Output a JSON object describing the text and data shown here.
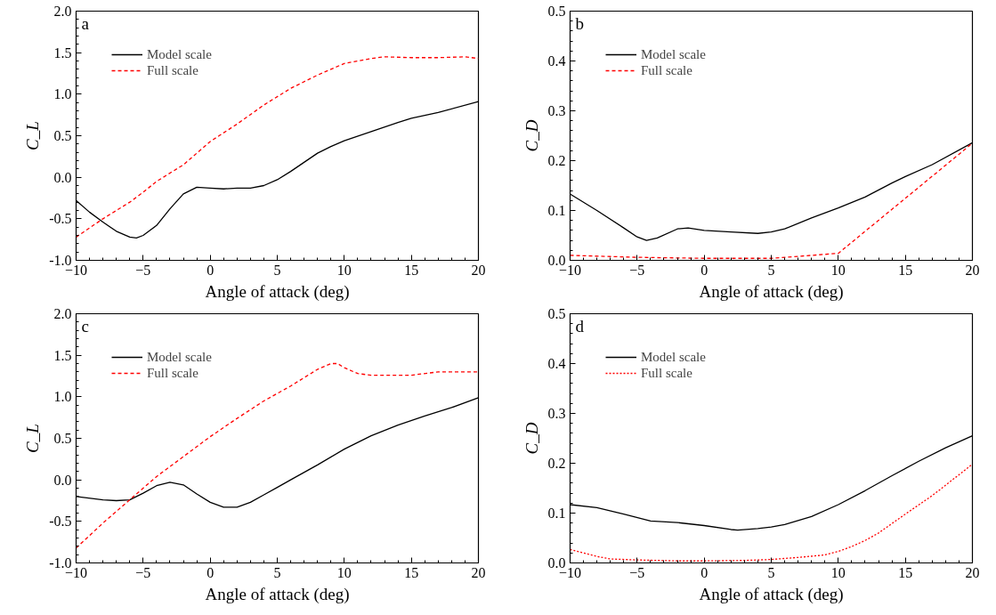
{
  "chart_data": [
    {
      "type": "line",
      "annotations": [
        "a"
      ],
      "xlabel": "Angle of attack (deg)",
      "ylabel": "C_L",
      "xlim": [
        -10,
        20
      ],
      "xticks": [
        -10,
        -5,
        0,
        5,
        10,
        15,
        20
      ],
      "ylim": [
        -1.0,
        2.0
      ],
      "yticks": [
        {
          "value": -1.0,
          "label": "-1.0"
        },
        {
          "value": -0.5,
          "label": "-0.5"
        },
        {
          "value": 0.0,
          "label": "0.0"
        },
        {
          "value": 0.5,
          "label": "0.5"
        },
        {
          "value": 1.0,
          "label": "1.0"
        },
        {
          "value": 1.5,
          "label": "1.5"
        },
        {
          "value": 2.0,
          "label": "2.0"
        }
      ],
      "grid": false,
      "legend": "top left",
      "series": [
        {
          "name": "Model scale",
          "color": "#000000",
          "line_style": "solid",
          "x": [
            -10,
            -9,
            -8,
            -7,
            -6,
            -5.5,
            -5,
            -4,
            -3,
            -2,
            -1,
            0,
            1,
            2,
            3,
            4,
            5,
            6,
            7,
            8,
            9,
            10,
            12,
            14,
            15,
            17,
            20
          ],
          "values": [
            -0.28,
            -0.42,
            -0.54,
            -0.65,
            -0.72,
            -0.73,
            -0.7,
            -0.58,
            -0.38,
            -0.2,
            -0.12,
            -0.13,
            -0.14,
            -0.13,
            -0.13,
            -0.1,
            -0.03,
            0.07,
            0.18,
            0.29,
            0.37,
            0.44,
            0.55,
            0.66,
            0.71,
            0.78,
            0.91
          ]
        },
        {
          "name": "Full scale",
          "color": "#ff0000",
          "line_style": "dashed",
          "x": [
            -10,
            -8,
            -6,
            -5,
            -4,
            -2,
            0,
            2,
            4,
            6,
            8,
            10,
            12,
            13,
            15,
            17,
            19,
            20
          ],
          "values": [
            -0.72,
            -0.5,
            -0.3,
            -0.18,
            -0.05,
            0.15,
            0.43,
            0.64,
            0.87,
            1.07,
            1.23,
            1.37,
            1.43,
            1.45,
            1.44,
            1.44,
            1.45,
            1.43
          ]
        }
      ]
    },
    {
      "type": "line",
      "annotations": [
        "b"
      ],
      "xlabel": "Angle of attack (deg)",
      "ylabel": "C_D",
      "xlim": [
        -10,
        20
      ],
      "xticks": [
        -10,
        -5,
        0,
        5,
        10,
        15,
        20
      ],
      "ylim": [
        0.0,
        0.5
      ],
      "yticks": [
        {
          "value": 0.0,
          "label": "0.0"
        },
        0.1,
        0.2,
        0.3,
        0.4,
        0.5
      ],
      "grid": false,
      "legend": "top left",
      "series": [
        {
          "name": "Model scale",
          "color": "#000000",
          "line_style": "solid",
          "x": [
            -10,
            -8,
            -6,
            -5,
            -4.3,
            -3.5,
            -2,
            -1.2,
            0,
            2,
            4,
            5,
            6,
            8,
            10,
            12,
            14,
            15,
            17,
            20
          ],
          "values": [
            0.133,
            0.1,
            0.065,
            0.047,
            0.04,
            0.045,
            0.063,
            0.065,
            0.06,
            0.057,
            0.054,
            0.057,
            0.063,
            0.085,
            0.105,
            0.127,
            0.155,
            0.168,
            0.192,
            0.236
          ]
        },
        {
          "name": "Full scale",
          "color": "#ff0000",
          "line_style": "dashed",
          "x": [
            -10,
            -5,
            0,
            5,
            7,
            10,
            20
          ],
          "values": [
            0.01,
            0.006,
            0.004,
            0.004,
            0.008,
            0.014,
            0.235
          ]
        }
      ]
    },
    {
      "type": "line",
      "annotations": [
        "c"
      ],
      "xlabel": "Angle of attack (deg)",
      "ylabel": "C_L",
      "xlim": [
        -10,
        20
      ],
      "xticks": [
        -10,
        -5,
        0,
        5,
        10,
        15,
        20
      ],
      "ylim": [
        -1.0,
        2.0
      ],
      "yticks": [
        {
          "value": -1.0,
          "label": "-1.0"
        },
        {
          "value": -0.5,
          "label": "-0.5"
        },
        {
          "value": 0.0,
          "label": "0.0"
        },
        {
          "value": 0.5,
          "label": "0.5"
        },
        {
          "value": 1.0,
          "label": "1.0"
        },
        {
          "value": 1.5,
          "label": "1.5"
        },
        {
          "value": 2.0,
          "label": "2.0"
        }
      ],
      "grid": false,
      "legend": "top left",
      "series": [
        {
          "name": "Model scale",
          "color": "#000000",
          "line_style": "solid",
          "x": [
            -10,
            -8,
            -7,
            -6,
            -5,
            -4,
            -3,
            -2,
            -1,
            0,
            1,
            2,
            3,
            4,
            5,
            6,
            8,
            10,
            12,
            14,
            16,
            18,
            20
          ],
          "values": [
            -0.2,
            -0.24,
            -0.25,
            -0.24,
            -0.16,
            -0.07,
            -0.03,
            -0.06,
            -0.17,
            -0.27,
            -0.33,
            -0.33,
            -0.27,
            -0.18,
            -0.09,
            0.0,
            0.18,
            0.37,
            0.53,
            0.66,
            0.77,
            0.87,
            0.99
          ]
        },
        {
          "name": "Full scale",
          "color": "#ff0000",
          "line_style": "dashed",
          "x": [
            -10,
            -8,
            -6,
            -4,
            -2,
            0,
            2,
            4,
            6,
            8,
            9,
            9.5,
            10,
            11,
            12,
            15,
            17,
            20
          ],
          "values": [
            -0.82,
            -0.52,
            -0.24,
            0.04,
            0.28,
            0.52,
            0.74,
            0.95,
            1.13,
            1.33,
            1.4,
            1.4,
            1.35,
            1.28,
            1.26,
            1.26,
            1.3,
            1.3
          ]
        }
      ]
    },
    {
      "type": "line",
      "annotations": [
        "d"
      ],
      "xlabel": "Angle of attack (deg)",
      "ylabel": "C_D",
      "xlim": [
        -10,
        20
      ],
      "xticks": [
        -10,
        -5,
        0,
        5,
        10,
        15,
        20
      ],
      "ylim": [
        0.0,
        0.5
      ],
      "yticks": [
        {
          "value": 0.0,
          "label": "0.0"
        },
        0.1,
        0.2,
        0.3,
        0.4,
        0.5
      ],
      "grid": false,
      "legend": "top left",
      "series": [
        {
          "name": "Model scale",
          "color": "#000000",
          "line_style": "solid",
          "x": [
            -10,
            -8,
            -6,
            -4,
            -2,
            0,
            2,
            2.5,
            4,
            5,
            6,
            8,
            10,
            12,
            14,
            16,
            18,
            20
          ],
          "values": [
            0.117,
            0.111,
            0.098,
            0.084,
            0.081,
            0.075,
            0.067,
            0.066,
            0.069,
            0.072,
            0.077,
            0.093,
            0.117,
            0.145,
            0.175,
            0.204,
            0.231,
            0.255
          ]
        },
        {
          "name": "Full scale",
          "color": "#ff0000",
          "line_style": "dotted",
          "x": [
            -10,
            -8,
            -7,
            -5,
            -2,
            0,
            3,
            5,
            7,
            9,
            10,
            11,
            12,
            13,
            15,
            17,
            20
          ],
          "values": [
            0.027,
            0.013,
            0.008,
            0.006,
            0.004,
            0.004,
            0.005,
            0.007,
            0.011,
            0.016,
            0.023,
            0.033,
            0.045,
            0.06,
            0.098,
            0.135,
            0.198
          ]
        }
      ]
    }
  ]
}
